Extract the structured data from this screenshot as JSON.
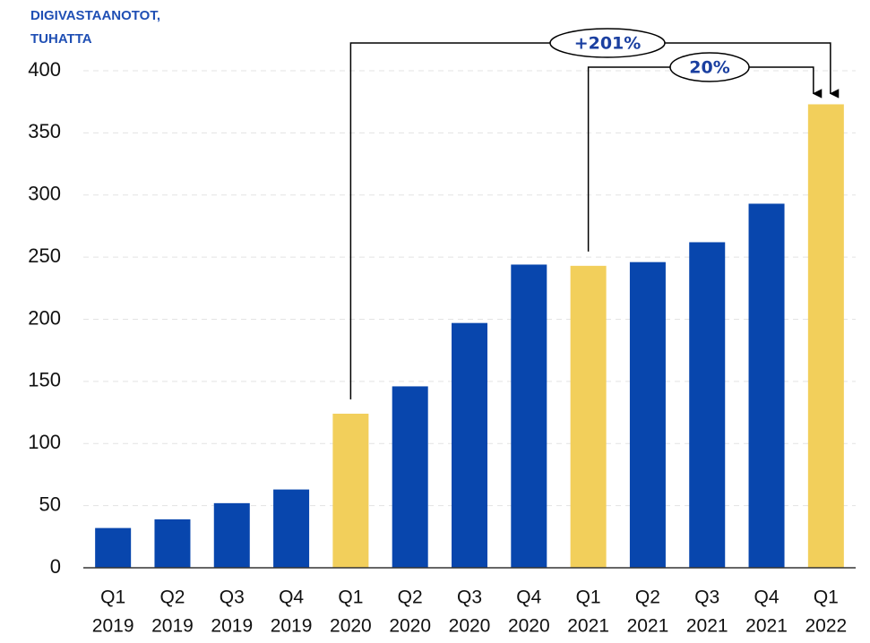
{
  "chart_data": {
    "type": "bar",
    "ylabel": [
      "DIGIVASTAANOTOT,",
      "TUHATTA"
    ],
    "categories": [
      [
        "Q1",
        "2019"
      ],
      [
        "Q2",
        "2019"
      ],
      [
        "Q3",
        "2019"
      ],
      [
        "Q4",
        "2019"
      ],
      [
        "Q1",
        "2020"
      ],
      [
        "Q2",
        "2020"
      ],
      [
        "Q3",
        "2020"
      ],
      [
        "Q4",
        "2020"
      ],
      [
        "Q1",
        "2021"
      ],
      [
        "Q2",
        "2021"
      ],
      [
        "Q3",
        "2021"
      ],
      [
        "Q4",
        "2021"
      ],
      [
        "Q1",
        "2022"
      ]
    ],
    "values": [
      32,
      39,
      52,
      63,
      124,
      146,
      197,
      244,
      243,
      246,
      262,
      293,
      373
    ],
    "colors": [
      "#0846ad",
      "#0846ad",
      "#0846ad",
      "#0846ad",
      "#f2cf5b",
      "#0846ad",
      "#0846ad",
      "#0846ad",
      "#f2cf5b",
      "#0846ad",
      "#0846ad",
      "#0846ad",
      "#f2cf5b"
    ],
    "ylim": [
      0,
      400
    ],
    "yticks": [
      0,
      50,
      100,
      150,
      200,
      250,
      300,
      350,
      400
    ],
    "grid": true,
    "annotations": [
      {
        "text": "+201%"
      },
      {
        "text": "20%"
      }
    ]
  }
}
